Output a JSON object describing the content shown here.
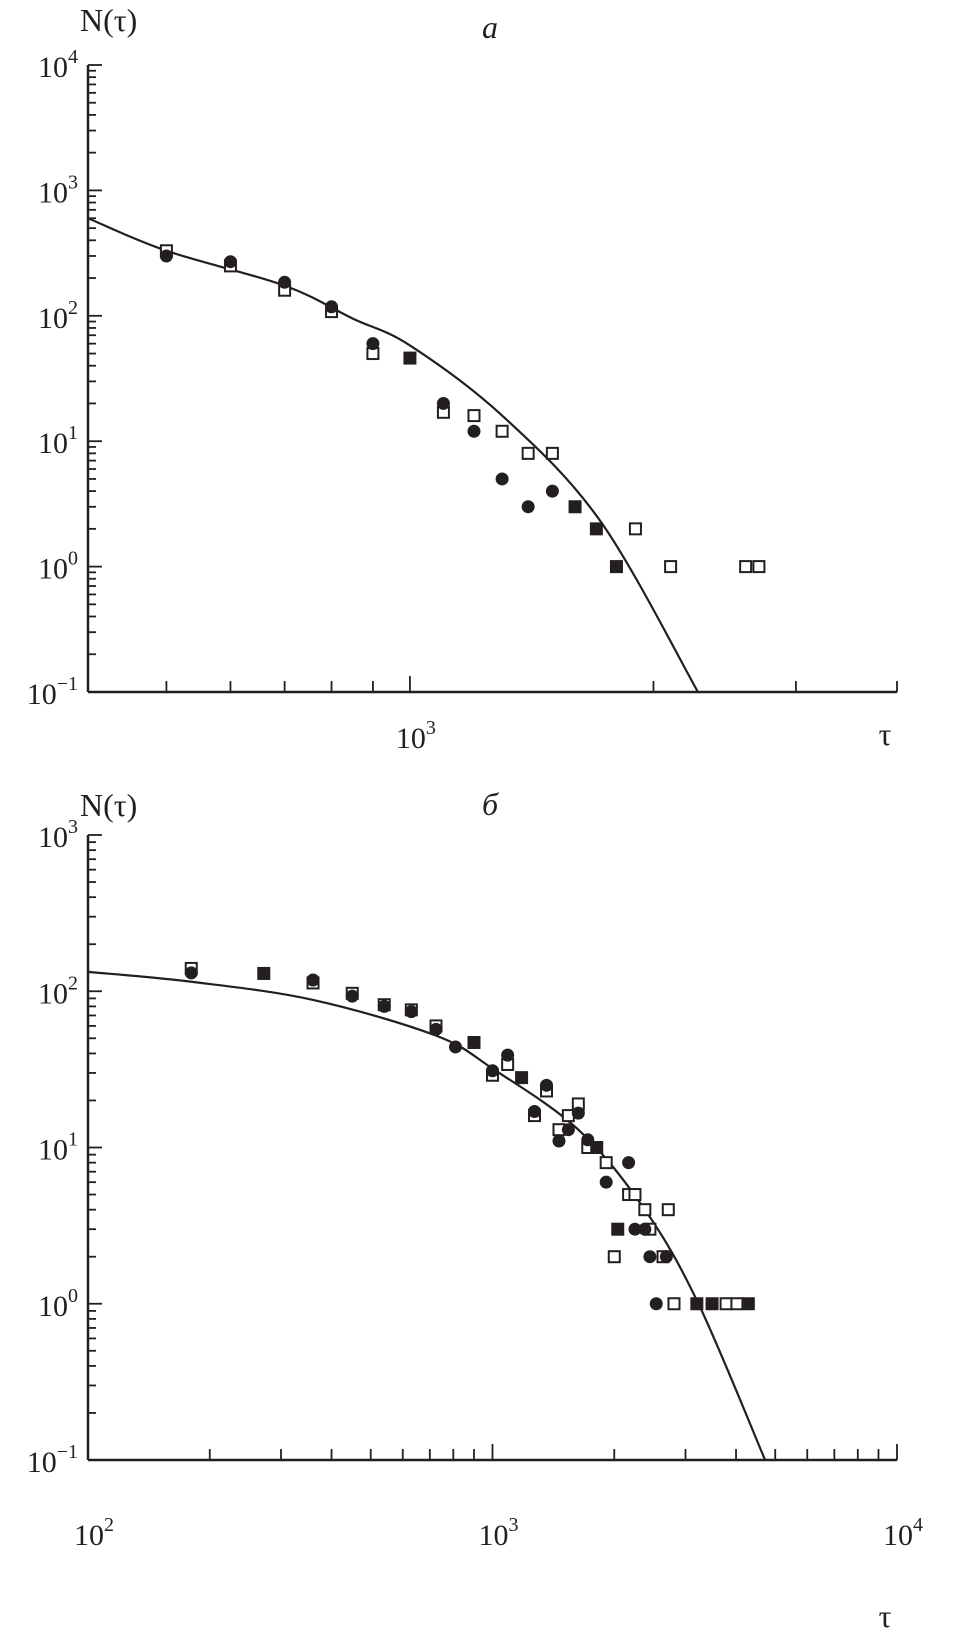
{
  "chart_data": [
    {
      "type": "scatter",
      "panel_label": "a",
      "ylabel": "N(τ)",
      "xlabel": "τ",
      "xscale": "log",
      "yscale": "log",
      "xlim": [
        400,
        4000
      ],
      "ylim": [
        0.1,
        10000
      ],
      "grid": false,
      "x_tick_labels": [
        {
          "value": 1000,
          "base": "10",
          "exp": "3"
        }
      ],
      "y_tick_labels": [
        {
          "value": 10000,
          "base": "10",
          "exp": "4"
        },
        {
          "value": 1000,
          "base": "10",
          "exp": "3"
        },
        {
          "value": 100,
          "base": "10",
          "exp": "2"
        },
        {
          "value": 10,
          "base": "10",
          "exp": "1"
        },
        {
          "value": 1,
          "base": "10",
          "exp": "0"
        },
        {
          "value": 0.1,
          "base": "10",
          "exp": "−1"
        }
      ],
      "series": [
        {
          "marker": "open-square",
          "x": [
            500,
            600,
            700,
            800,
            900,
            1100,
            1200,
            1300,
            1400,
            1500,
            1900,
            2100,
            2600,
            2700
          ],
          "y": [
            330,
            250,
            160,
            108,
            50,
            17,
            16,
            12,
            8,
            8,
            2,
            1,
            1,
            1
          ]
        },
        {
          "marker": "filled-circle",
          "x": [
            500,
            600,
            700,
            800,
            900,
            1100,
            1200,
            1300,
            1400,
            1500
          ],
          "y": [
            300,
            270,
            185,
            118,
            60,
            20,
            12,
            5,
            3,
            4
          ]
        },
        {
          "marker": "filled-square",
          "x": [
            1000,
            1600,
            1700,
            1800
          ],
          "y": [
            46,
            3,
            2,
            1
          ]
        },
        {
          "marker": "line",
          "x": [
            400,
            500,
            700,
            850,
            1000,
            1300,
            1720,
            2270
          ],
          "y": [
            600,
            330,
            174,
            95,
            58,
            16,
            2.3,
            0.1
          ]
        }
      ]
    },
    {
      "type": "scatter",
      "panel_label": "б",
      "ylabel": "N(τ)",
      "xlabel": "τ",
      "xscale": "log",
      "yscale": "log",
      "xlim": [
        100,
        10000
      ],
      "ylim": [
        0.1,
        1000
      ],
      "grid": false,
      "x_tick_labels": [
        {
          "value": 100,
          "base": "10",
          "exp": "2"
        },
        {
          "value": 1000,
          "base": "10",
          "exp": "3"
        },
        {
          "value": 10000,
          "base": "10",
          "exp": "4"
        }
      ],
      "y_tick_labels": [
        {
          "value": 1000,
          "base": "10",
          "exp": "3"
        },
        {
          "value": 100,
          "base": "10",
          "exp": "2"
        },
        {
          "value": 10,
          "base": "10",
          "exp": "1"
        },
        {
          "value": 1,
          "base": "10",
          "exp": "0"
        },
        {
          "value": 0.1,
          "base": "10",
          "exp": "−1"
        }
      ],
      "series": [
        {
          "marker": "open-square",
          "x": [
            180,
            360,
            450,
            540,
            630,
            725,
            1000,
            1090,
            1270,
            1360,
            1460,
            1540,
            1630,
            1720,
            1910,
            2170,
            2250,
            2380,
            2450,
            2000,
            2640,
            2720,
            2810,
            3780,
            4020
          ],
          "y": [
            140,
            113,
            97,
            82,
            76,
            60,
            29,
            34,
            16,
            23,
            13,
            16,
            19,
            10,
            8,
            5,
            5,
            4,
            3,
            2,
            2,
            4,
            1,
            1,
            1
          ]
        },
        {
          "marker": "filled-circle",
          "x": [
            180,
            360,
            450,
            540,
            630,
            725,
            810,
            1000,
            1090,
            1270,
            1360,
            1460,
            1540,
            1630,
            1720,
            1910,
            2170,
            2250,
            2380,
            2450,
            2540,
            2690
          ],
          "y": [
            131,
            118,
            93,
            80,
            74,
            57,
            44,
            31,
            39,
            17,
            25,
            11,
            13,
            16.6,
            11.2,
            6,
            8,
            3,
            3,
            2,
            1,
            2
          ]
        },
        {
          "marker": "filled-square",
          "x": [
            272,
            900,
            1180,
            1810,
            2040,
            3200,
            3490,
            4290
          ],
          "y": [
            130,
            47,
            28,
            10,
            3,
            1,
            1,
            1
          ]
        },
        {
          "marker": "line",
          "x": [
            100,
            180,
            360,
            725,
            1000,
            1630,
            2380,
            3230,
            4720
          ],
          "y": [
            133,
            115,
            88,
            52,
            32,
            13,
            4,
            1,
            0.1
          ]
        }
      ]
    }
  ]
}
